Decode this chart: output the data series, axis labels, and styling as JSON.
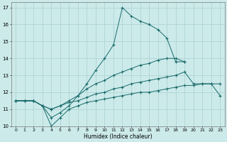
{
  "xlabel": "Humidex (Indice chaleur)",
  "background_color": "#cceaea",
  "grid_color": "#aacfcf",
  "line_color": "#1a6b6b",
  "xlim": [
    -0.5,
    23.5
  ],
  "ylim": [
    10,
    17.3
  ],
  "yticks": [
    10,
    11,
    12,
    13,
    14,
    15,
    16,
    17
  ],
  "xticks": [
    0,
    1,
    2,
    3,
    4,
    5,
    6,
    7,
    8,
    9,
    10,
    11,
    12,
    13,
    14,
    15,
    16,
    17,
    18,
    19,
    20,
    21,
    22,
    23
  ],
  "series": [
    {
      "x": [
        0,
        1,
        2,
        3,
        4,
        5,
        6,
        7,
        8,
        9,
        10,
        11,
        12,
        13,
        14,
        15,
        16,
        17,
        18,
        19
      ],
      "y": [
        11.5,
        11.5,
        11.5,
        11.2,
        10.5,
        10.8,
        11.2,
        11.8,
        12.5,
        13.3,
        14.0,
        14.8,
        17.0,
        16.5,
        16.2,
        16.0,
        15.7,
        15.2,
        13.8,
        13.8
      ]
    },
    {
      "x": [
        0,
        1,
        2,
        3,
        4,
        5,
        6,
        7,
        8,
        9,
        10,
        11,
        12,
        13,
        14,
        15,
        16,
        17,
        18,
        19,
        20,
        21,
        22,
        23
      ],
      "y": [
        11.5,
        11.5,
        11.5,
        11.2,
        11.0,
        11.2,
        11.5,
        11.8,
        12.2,
        12.5,
        12.7,
        13.0,
        13.2,
        13.4,
        13.6,
        13.7,
        13.9,
        14.0,
        14.0,
        13.8,
        null,
        null,
        null,
        null
      ]
    },
    {
      "x": [
        0,
        1,
        2,
        3,
        4,
        5,
        6,
        7,
        8,
        9,
        10,
        11,
        12,
        13,
        14,
        15,
        16,
        17,
        18,
        19,
        20,
        21,
        22,
        23
      ],
      "y": [
        11.5,
        11.5,
        11.5,
        11.2,
        11.0,
        11.2,
        11.4,
        11.5,
        11.7,
        11.9,
        12.0,
        12.2,
        12.3,
        12.5,
        12.6,
        12.7,
        12.8,
        12.9,
        13.0,
        13.2,
        12.5,
        12.5,
        12.5,
        12.5
      ]
    },
    {
      "x": [
        0,
        1,
        2,
        3,
        4,
        5,
        6,
        7,
        8,
        9,
        10,
        11,
        12,
        13,
        14,
        15,
        16,
        17,
        18,
        19,
        20,
        21,
        22,
        23
      ],
      "y": [
        11.5,
        11.5,
        11.5,
        11.2,
        10.0,
        10.5,
        11.0,
        11.2,
        11.4,
        11.5,
        11.6,
        11.7,
        11.8,
        11.9,
        12.0,
        12.0,
        12.1,
        12.2,
        12.3,
        12.4,
        12.4,
        12.5,
        12.5,
        11.8
      ]
    }
  ]
}
